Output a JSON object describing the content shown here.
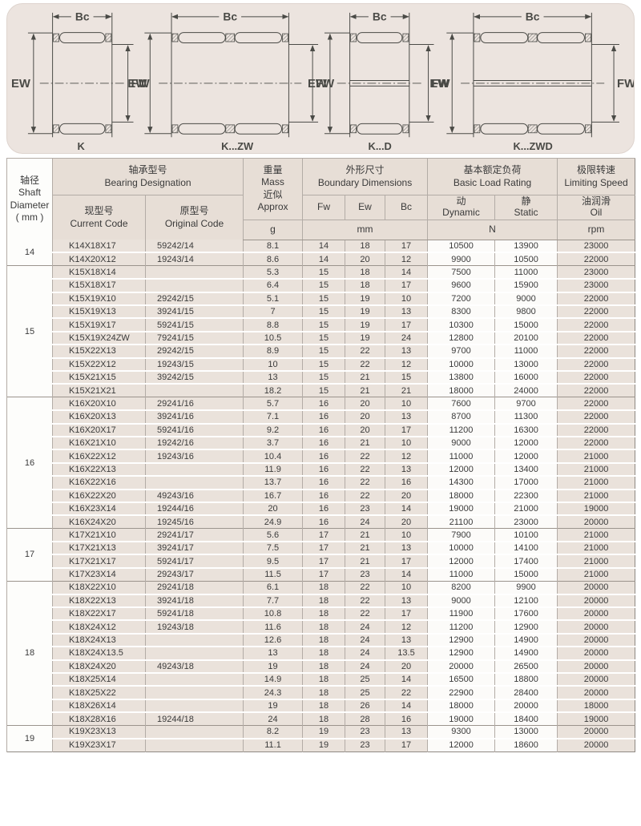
{
  "diagrams": {
    "dim_labels": {
      "bc": "Bc",
      "ew": "EW",
      "fw": "FW"
    },
    "types": [
      {
        "name": "K",
        "style": "single",
        "band": false
      },
      {
        "name": "K...ZW",
        "style": "double",
        "band": false
      },
      {
        "name": "K...D",
        "style": "single",
        "band": true
      },
      {
        "name": "K...ZWD",
        "style": "double",
        "band": true
      }
    ]
  },
  "table": {
    "header": {
      "shaft": {
        "zh": "轴径",
        "en1": "Shaft",
        "en2": "Diameter",
        "en3": "( mm )"
      },
      "designation": {
        "zh": "轴承型号",
        "en": "Bearing Designation"
      },
      "current": {
        "zh": "现型号",
        "en": "Current Code"
      },
      "original": {
        "zh": "原型号",
        "en": "Original Code"
      },
      "mass": {
        "zh": "重量",
        "en": "Mass",
        "zh2": "近似",
        "en2": "Approx",
        "unit": "g"
      },
      "boundary": {
        "zh": "外形尺寸",
        "en": "Boundary Dimensions",
        "cols": [
          "Fw",
          "Ew",
          "Bc"
        ],
        "unit": "mm"
      },
      "load": {
        "zh": "基本额定负荷",
        "en": "Basic Load Rating",
        "dyn_zh": "动",
        "dyn_en": "Dynamic",
        "stat_zh": "静",
        "stat_en": "Static",
        "unit": "N"
      },
      "speed": {
        "zh": "极限转速",
        "en": "Limiting Speed",
        "oil_zh": "油润滑",
        "oil_en": "Oil",
        "unit": "rpm"
      }
    },
    "groups": [
      {
        "shaft": "14",
        "rows": [
          [
            "K14X18X17",
            "59242/14",
            "8.1",
            "14",
            "18",
            "17",
            "10500",
            "13900",
            "23000"
          ],
          [
            "K14X20X12",
            "19243/14",
            "8.6",
            "14",
            "20",
            "12",
            "9900",
            "10500",
            "22000"
          ]
        ]
      },
      {
        "shaft": "15",
        "rows": [
          [
            "K15X18X14",
            "",
            "5.3",
            "15",
            "18",
            "14",
            "7500",
            "11000",
            "23000"
          ],
          [
            "K15X18X17",
            "",
            "6.4",
            "15",
            "18",
            "17",
            "9600",
            "15900",
            "23000"
          ],
          [
            "K15X19X10",
            "29242/15",
            "5.1",
            "15",
            "19",
            "10",
            "7200",
            "9000",
            "22000"
          ],
          [
            "K15X19X13",
            "39241/15",
            "7",
            "15",
            "19",
            "13",
            "8300",
            "9800",
            "22000"
          ],
          [
            "K15X19X17",
            "59241/15",
            "8.8",
            "15",
            "19",
            "17",
            "10300",
            "15000",
            "22000"
          ],
          [
            "K15X19X24ZW",
            "79241/15",
            "10.5",
            "15",
            "19",
            "24",
            "12800",
            "20100",
            "22000"
          ],
          [
            "K15X22X13",
            "29242/15",
            "8.9",
            "15",
            "22",
            "13",
            "9700",
            "11000",
            "22000"
          ],
          [
            "K15X22X12",
            "19243/15",
            "10",
            "15",
            "22",
            "12",
            "10000",
            "13000",
            "22000"
          ],
          [
            "K15X21X15",
            "39242/15",
            "13",
            "15",
            "21",
            "15",
            "13800",
            "16000",
            "22000"
          ],
          [
            "K15X21X21",
            "",
            "18.2",
            "15",
            "21",
            "21",
            "18000",
            "24000",
            "22000"
          ]
        ]
      },
      {
        "shaft": "16",
        "rows": [
          [
            "K16X20X10",
            "29241/16",
            "5.7",
            "16",
            "20",
            "10",
            "7600",
            "9700",
            "22000"
          ],
          [
            "K16X20X13",
            "39241/16",
            "7.1",
            "16",
            "20",
            "13",
            "8700",
            "11300",
            "22000"
          ],
          [
            "K16X20X17",
            "59241/16",
            "9.2",
            "16",
            "20",
            "17",
            "11200",
            "16300",
            "22000"
          ],
          [
            "K16X21X10",
            "19242/16",
            "3.7",
            "16",
            "21",
            "10",
            "9000",
            "12000",
            "22000"
          ],
          [
            "K16X22X12",
            "19243/16",
            "10.4",
            "16",
            "22",
            "12",
            "11000",
            "12000",
            "21000"
          ],
          [
            "K16X22X13",
            "",
            "11.9",
            "16",
            "22",
            "13",
            "12000",
            "13400",
            "21000"
          ],
          [
            "K16X22X16",
            "",
            "13.7",
            "16",
            "22",
            "16",
            "14300",
            "17000",
            "21000"
          ],
          [
            "K16X22X20",
            "49243/16",
            "16.7",
            "16",
            "22",
            "20",
            "18000",
            "22300",
            "21000"
          ],
          [
            "K16X23X14",
            "19244/16",
            "20",
            "16",
            "23",
            "14",
            "19000",
            "21000",
            "19000"
          ],
          [
            "K16X24X20",
            "19245/16",
            "24.9",
            "16",
            "24",
            "20",
            "21100",
            "23000",
            "20000"
          ]
        ]
      },
      {
        "shaft": "17",
        "rows": [
          [
            "K17X21X10",
            "29241/17",
            "5.6",
            "17",
            "21",
            "10",
            "7900",
            "10100",
            "21000"
          ],
          [
            "K17X21X13",
            "39241/17",
            "7.5",
            "17",
            "21",
            "13",
            "10000",
            "14100",
            "21000"
          ],
          [
            "K17X21X17",
            "59241/17",
            "9.5",
            "17",
            "21",
            "17",
            "12000",
            "17400",
            "21000"
          ],
          [
            "K17X23X14",
            "29243/17",
            "11.5",
            "17",
            "23",
            "14",
            "11000",
            "15000",
            "21000"
          ]
        ]
      },
      {
        "shaft": "18",
        "rows": [
          [
            "K18X22X10",
            "29241/18",
            "6.1",
            "18",
            "22",
            "10",
            "8200",
            "9900",
            "20000"
          ],
          [
            "K18X22X13",
            "39241/18",
            "7.7",
            "18",
            "22",
            "13",
            "9000",
            "12100",
            "20000"
          ],
          [
            "K18X22X17",
            "59241/18",
            "10.8",
            "18",
            "22",
            "17",
            "11900",
            "17600",
            "20000"
          ],
          [
            "K18X24X12",
            "19243/18",
            "11.6",
            "18",
            "24",
            "12",
            "11200",
            "12900",
            "20000"
          ],
          [
            "K18X24X13",
            "",
            "12.6",
            "18",
            "24",
            "13",
            "12900",
            "14900",
            "20000"
          ],
          [
            "K18X24X13.5",
            "",
            "13",
            "18",
            "24",
            "13.5",
            "12900",
            "14900",
            "20000"
          ],
          [
            "K18X24X20",
            "49243/18",
            "19",
            "18",
            "24",
            "20",
            "20000",
            "26500",
            "20000"
          ],
          [
            "K18X25X14",
            "",
            "14.9",
            "18",
            "25",
            "14",
            "16500",
            "18800",
            "20000"
          ],
          [
            "K18X25X22",
            "",
            "24.3",
            "18",
            "25",
            "22",
            "22900",
            "28400",
            "20000"
          ],
          [
            "K18X26X14",
            "",
            "19",
            "18",
            "26",
            "14",
            "18000",
            "20000",
            "18000"
          ],
          [
            "K18X28X16",
            "19244/18",
            "24",
            "18",
            "28",
            "16",
            "19000",
            "18400",
            "19000"
          ]
        ]
      },
      {
        "shaft": "19",
        "rows": [
          [
            "K19X23X13",
            "",
            "8.2",
            "19",
            "23",
            "13",
            "9300",
            "13000",
            "20000"
          ],
          [
            "K19X23X17",
            "",
            "11.1",
            "19",
            "23",
            "17",
            "12000",
            "18600",
            "20000"
          ]
        ]
      }
    ]
  },
  "colors": {
    "panel_bg": "#ece4df",
    "header_bg": "#e7ded6",
    "cell_bg": "#eae2db",
    "white_cell_bg": "#fcfbf9",
    "grid_gray": "#b3aca6",
    "group_line": "#9b948d",
    "line_color": "#4a4a46",
    "text_color": "#3b3b3b"
  }
}
